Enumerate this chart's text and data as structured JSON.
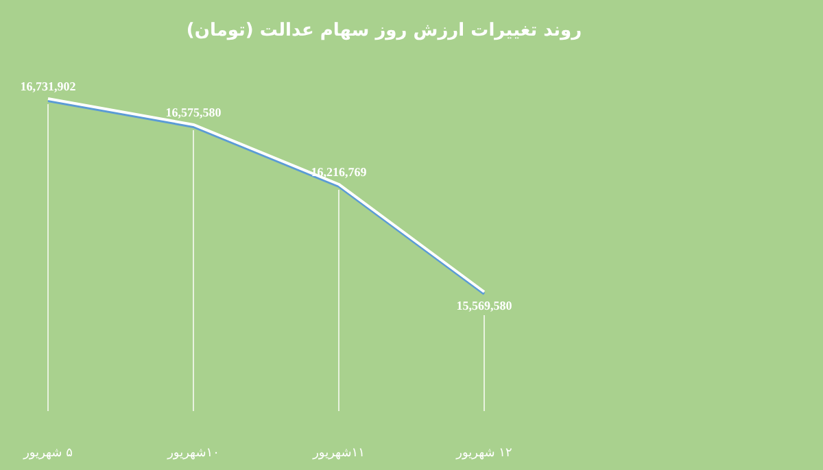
{
  "chart_data": {
    "type": "line",
    "title": "روند تغییرات ارزش روز سهام عدالت (تومان)",
    "categories": [
      "۵ شهریور",
      "۱۰شهریور",
      "۱۱شهریور",
      "۱۲ شهریور"
    ],
    "series": [
      {
        "color": "#ffffff",
        "values": [
          16731902,
          16575580,
          16216769,
          15569580
        ],
        "value_labels": [
          "16,731,902",
          "16,575,580",
          "16,216,769",
          "15,569,580"
        ]
      }
    ],
    "tick_labels": "x",
    "grid": "x",
    "line_style": "solid"
  }
}
